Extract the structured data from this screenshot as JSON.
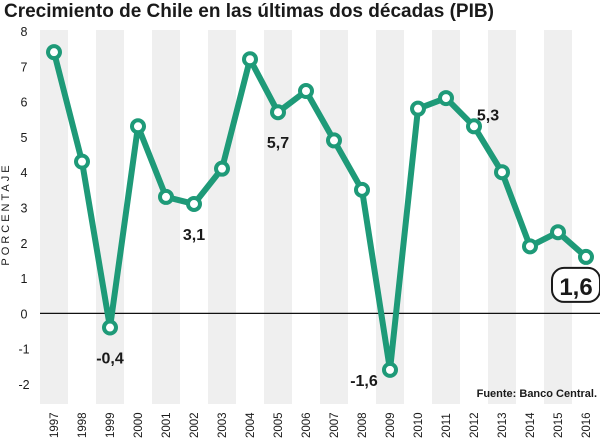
{
  "chart_data": {
    "type": "line",
    "title": "Crecimiento de Chile en las últimas dos décadas (PIB)",
    "ylabel": "PORCENTAJE",
    "xlabel": "",
    "source": "Fuente: Banco Central.",
    "x": [
      "1997",
      "1998",
      "1999",
      "2000",
      "2001",
      "2002",
      "2003",
      "2004",
      "2005",
      "2006",
      "2007",
      "2008",
      "2009",
      "2010",
      "2011",
      "2012",
      "2013",
      "2014",
      "2015",
      "2016"
    ],
    "series": [
      {
        "values": [
          7.4,
          4.3,
          -0.4,
          5.3,
          3.3,
          3.1,
          4.1,
          7.2,
          5.7,
          6.3,
          4.9,
          3.5,
          -1.6,
          5.8,
          6.1,
          5.3,
          4.0,
          1.9,
          2.3,
          1.6
        ]
      }
    ],
    "ylim": [
      -2,
      8
    ],
    "yticks": [
      "8",
      "7",
      "6",
      "5",
      "4",
      "3",
      "2",
      "1",
      "0",
      "-1",
      "-2"
    ],
    "grid": true,
    "annotations": [
      {
        "x": "1999",
        "text": "-0,4"
      },
      {
        "x": "2002",
        "text": "3,1"
      },
      {
        "x": "2005",
        "text": "5,7"
      },
      {
        "x": "2009",
        "text": "-1,6"
      },
      {
        "x": "2012",
        "text": "5,3"
      },
      {
        "x": "2016",
        "text": "1,6",
        "highlight": true
      }
    ],
    "colors": {
      "line": "#1e9a78",
      "marker_fill": "#ffffff",
      "band": "#efefef",
      "zero_line": "#111111"
    }
  }
}
